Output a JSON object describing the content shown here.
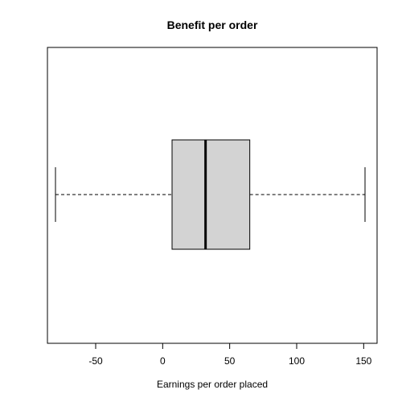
{
  "chart_data": {
    "type": "boxplot",
    "title": "Benefit per order",
    "xlabel": "Earnings per order placed",
    "ylabel": "",
    "orientation": "horizontal",
    "xlim": [
      -86,
      160
    ],
    "xticks": [
      -50,
      0,
      50,
      100,
      150
    ],
    "xtick_labels": [
      "-50",
      "0",
      "50",
      "100",
      "150"
    ],
    "grid": false,
    "legend": "none",
    "box": {
      "whisker_low": -80,
      "q1": 7,
      "median": 32,
      "q3": 65,
      "whisker_high": 151
    },
    "colors": {
      "box_fill": "#d3d3d3",
      "lines": "#000000"
    }
  }
}
